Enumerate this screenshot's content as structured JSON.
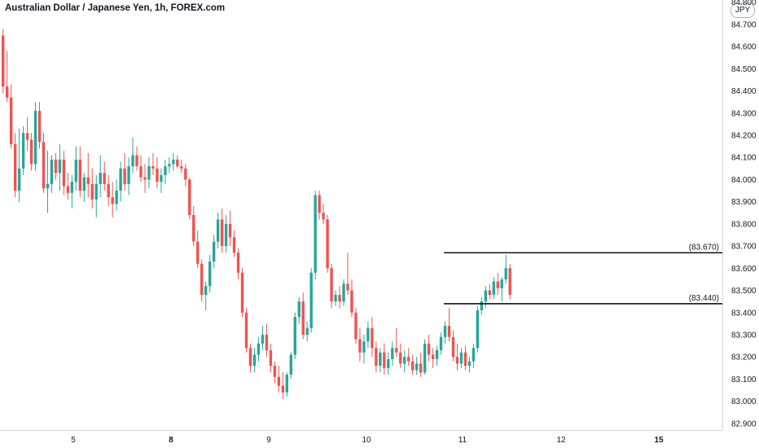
{
  "header": {
    "title": "Australian Dollar / Japanese Yen, 1h, FOREX.com",
    "currency": "JPY"
  },
  "colors": {
    "up": "#26a69a",
    "down": "#ef5350",
    "axis": "#d1d4dc",
    "line": "#000000"
  },
  "chart_data": {
    "type": "candlestick",
    "title": "Australian Dollar / Japanese Yen, 1h, FOREX.com",
    "ylim": [
      82.87,
      84.81
    ],
    "y_ticks": [
      "84.800",
      "84.700",
      "84.600",
      "84.500",
      "84.400",
      "84.300",
      "84.200",
      "84.100",
      "84.000",
      "83.900",
      "83.800",
      "83.700",
      "83.600",
      "83.500",
      "83.400",
      "83.300",
      "83.200",
      "83.100",
      "83.000",
      "82.900"
    ],
    "x_ticks": [
      {
        "label": "5",
        "bold": false
      },
      {
        "label": "8",
        "bold": true
      },
      {
        "label": "9",
        "bold": false
      },
      {
        "label": "10",
        "bold": false
      },
      {
        "label": "11",
        "bold": false
      },
      {
        "label": "12",
        "bold": false
      },
      {
        "label": "15",
        "bold": true
      }
    ],
    "levels": [
      {
        "value": 83.67,
        "label": "(83.670)"
      },
      {
        "value": 83.44,
        "label": "(83.440)"
      }
    ],
    "candles": [
      [
        84.65,
        84.68,
        84.39,
        84.42
      ],
      [
        84.42,
        84.58,
        84.35,
        84.37
      ],
      [
        84.37,
        84.43,
        84.14,
        84.16
      ],
      [
        84.16,
        84.21,
        83.92,
        83.95
      ],
      [
        83.95,
        84.23,
        83.9,
        84.05
      ],
      [
        84.05,
        84.24,
        84.02,
        84.21
      ],
      [
        84.21,
        84.28,
        84.13,
        84.18
      ],
      [
        84.18,
        84.21,
        84.04,
        84.07
      ],
      [
        84.07,
        84.35,
        84.04,
        84.31
      ],
      [
        84.31,
        84.35,
        84.14,
        84.17
      ],
      [
        84.17,
        84.21,
        83.94,
        83.96
      ],
      [
        83.96,
        84.13,
        83.85,
        83.98
      ],
      [
        83.98,
        84.11,
        83.94,
        84.09
      ],
      [
        84.09,
        84.12,
        84.0,
        84.03
      ],
      [
        84.03,
        84.16,
        83.95,
        84.09
      ],
      [
        84.09,
        84.13,
        83.93,
        83.97
      ],
      [
        83.97,
        84.03,
        83.91,
        83.94
      ],
      [
        83.94,
        84.02,
        83.87,
        83.99
      ],
      [
        83.99,
        84.15,
        83.95,
        84.09
      ],
      [
        84.09,
        84.15,
        83.92,
        83.95
      ],
      [
        83.95,
        84.03,
        83.9,
        84.01
      ],
      [
        84.01,
        84.12,
        83.92,
        83.98
      ],
      [
        83.98,
        84.05,
        83.87,
        83.91
      ],
      [
        83.91,
        84.02,
        83.83,
        83.98
      ],
      [
        83.98,
        84.11,
        83.92,
        84.03
      ],
      [
        84.03,
        84.08,
        83.95,
        83.98
      ],
      [
        83.98,
        84.02,
        83.88,
        83.92
      ],
      [
        83.92,
        83.99,
        83.83,
        83.89
      ],
      [
        83.89,
        84.0,
        83.86,
        83.95
      ],
      [
        83.95,
        84.08,
        83.9,
        84.05
      ],
      [
        84.05,
        84.12,
        83.95,
        83.98
      ],
      [
        83.98,
        84.1,
        83.93,
        84.06
      ],
      [
        84.06,
        84.19,
        84.03,
        84.11
      ],
      [
        84.11,
        84.15,
        84.04,
        84.06
      ],
      [
        84.06,
        84.11,
        83.99,
        84.01
      ],
      [
        84.01,
        84.07,
        83.94,
        84.0
      ],
      [
        84.0,
        84.1,
        83.96,
        84.06
      ],
      [
        84.06,
        84.12,
        84.02,
        84.05
      ],
      [
        84.05,
        84.1,
        83.96,
        83.99
      ],
      [
        83.99,
        84.05,
        83.94,
        84.02
      ],
      [
        84.02,
        84.09,
        83.98,
        84.06
      ],
      [
        84.06,
        84.1,
        84.03,
        84.07
      ],
      [
        84.07,
        84.12,
        84.04,
        84.09
      ],
      [
        84.09,
        84.11,
        84.05,
        84.06
      ],
      [
        84.06,
        84.09,
        84.03,
        84.05
      ],
      [
        84.05,
        84.07,
        83.97,
        84.0
      ],
      [
        84.0,
        84.01,
        83.82,
        83.84
      ],
      [
        83.84,
        83.88,
        83.7,
        83.72
      ],
      [
        83.72,
        83.77,
        83.6,
        83.62
      ],
      [
        83.62,
        83.64,
        83.45,
        83.48
      ],
      [
        83.48,
        83.54,
        83.41,
        83.52
      ],
      [
        83.52,
        83.66,
        83.49,
        83.63
      ],
      [
        83.63,
        83.75,
        83.6,
        83.72
      ],
      [
        83.72,
        83.85,
        83.69,
        83.82
      ],
      [
        83.82,
        83.87,
        83.67,
        83.7
      ],
      [
        83.7,
        83.84,
        83.67,
        83.8
      ],
      [
        83.8,
        83.86,
        83.7,
        83.74
      ],
      [
        83.74,
        83.77,
        83.65,
        83.67
      ],
      [
        83.67,
        83.69,
        83.55,
        83.58
      ],
      [
        83.58,
        83.6,
        83.38,
        83.4
      ],
      [
        83.4,
        83.42,
        83.22,
        83.24
      ],
      [
        83.24,
        83.26,
        83.13,
        83.16
      ],
      [
        83.16,
        83.24,
        83.13,
        83.21
      ],
      [
        83.21,
        83.29,
        83.18,
        83.26
      ],
      [
        83.26,
        83.34,
        83.23,
        83.3
      ],
      [
        83.3,
        83.35,
        83.2,
        83.23
      ],
      [
        83.23,
        83.26,
        83.13,
        83.16
      ],
      [
        83.16,
        83.18,
        83.08,
        83.11
      ],
      [
        83.11,
        83.16,
        83.04,
        83.07
      ],
      [
        83.07,
        83.13,
        83.01,
        83.04
      ],
      [
        83.04,
        83.13,
        83.02,
        83.12
      ],
      [
        83.12,
        83.22,
        83.1,
        83.21
      ],
      [
        83.21,
        83.4,
        83.19,
        83.38
      ],
      [
        83.38,
        83.47,
        83.35,
        83.45
      ],
      [
        83.45,
        83.49,
        83.28,
        83.3
      ],
      [
        83.3,
        83.36,
        83.27,
        83.33
      ],
      [
        83.33,
        83.6,
        83.31,
        83.58
      ],
      [
        83.58,
        83.95,
        83.55,
        83.93
      ],
      [
        83.93,
        83.95,
        83.82,
        83.85
      ],
      [
        83.85,
        83.89,
        83.8,
        83.82
      ],
      [
        83.82,
        83.84,
        83.58,
        83.6
      ],
      [
        83.6,
        83.62,
        83.42,
        83.45
      ],
      [
        83.45,
        83.5,
        83.43,
        83.48
      ],
      [
        83.48,
        83.52,
        83.42,
        83.45
      ],
      [
        83.45,
        83.55,
        83.43,
        83.53
      ],
      [
        83.53,
        83.67,
        83.48,
        83.5
      ],
      [
        83.5,
        83.55,
        83.38,
        83.4
      ],
      [
        83.4,
        83.42,
        83.26,
        83.28
      ],
      [
        83.28,
        83.33,
        83.18,
        83.22
      ],
      [
        83.22,
        83.3,
        83.17,
        83.27
      ],
      [
        83.27,
        83.36,
        83.24,
        83.33
      ],
      [
        83.33,
        83.38,
        83.2,
        83.24
      ],
      [
        83.24,
        83.27,
        83.13,
        83.16
      ],
      [
        83.16,
        83.24,
        83.13,
        83.22
      ],
      [
        83.22,
        83.26,
        83.12,
        83.15
      ],
      [
        83.15,
        83.22,
        83.12,
        83.19
      ],
      [
        83.19,
        83.27,
        83.16,
        83.24
      ],
      [
        83.24,
        83.33,
        83.2,
        83.22
      ],
      [
        83.22,
        83.26,
        83.15,
        83.17
      ],
      [
        83.17,
        83.23,
        83.13,
        83.2
      ],
      [
        83.2,
        83.24,
        83.16,
        83.18
      ],
      [
        83.18,
        83.21,
        83.12,
        83.14
      ],
      [
        83.14,
        83.2,
        83.12,
        83.17
      ],
      [
        83.17,
        83.22,
        83.11,
        83.13
      ],
      [
        83.13,
        83.28,
        83.12,
        83.26
      ],
      [
        83.26,
        83.3,
        83.18,
        83.21
      ],
      [
        83.21,
        83.24,
        83.15,
        83.19
      ],
      [
        83.19,
        83.25,
        83.16,
        83.23
      ],
      [
        83.23,
        83.31,
        83.21,
        83.29
      ],
      [
        83.29,
        83.36,
        83.26,
        83.34
      ],
      [
        83.34,
        83.42,
        83.27,
        83.29
      ],
      [
        83.29,
        83.32,
        83.18,
        83.2
      ],
      [
        83.2,
        83.26,
        83.14,
        83.17
      ],
      [
        83.17,
        83.24,
        83.15,
        83.22
      ],
      [
        83.22,
        83.25,
        83.14,
        83.16
      ],
      [
        83.16,
        83.2,
        83.13,
        83.18
      ],
      [
        83.18,
        83.26,
        83.15,
        83.24
      ],
      [
        83.24,
        83.43,
        83.22,
        83.41
      ],
      [
        83.41,
        83.47,
        83.39,
        83.45
      ],
      [
        83.45,
        83.52,
        83.42,
        83.5
      ],
      [
        83.5,
        83.53,
        83.46,
        83.48
      ],
      [
        83.48,
        83.56,
        83.46,
        83.54
      ],
      [
        83.54,
        83.58,
        83.48,
        83.51
      ],
      [
        83.51,
        83.56,
        83.45,
        83.55
      ],
      [
        83.55,
        83.66,
        83.53,
        83.6
      ],
      [
        83.6,
        83.62,
        83.46,
        83.48
      ]
    ]
  }
}
